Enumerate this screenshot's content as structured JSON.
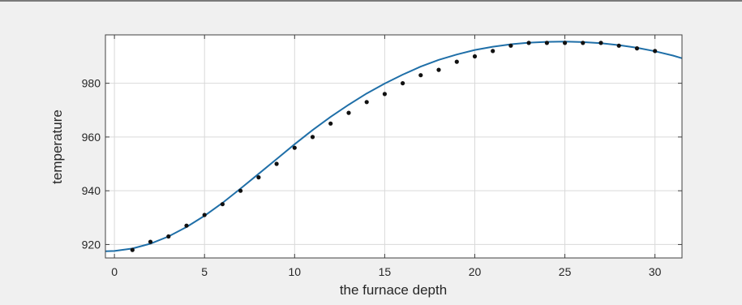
{
  "chart_data": {
    "type": "line",
    "title": "",
    "xlabel": "the furnace depth",
    "ylabel": "temperature",
    "xlim": [
      -0.5,
      31.5
    ],
    "ylim": [
      915,
      998
    ],
    "xticks": [
      0,
      5,
      10,
      15,
      20,
      25,
      30
    ],
    "yticks": [
      920,
      940,
      960,
      980
    ],
    "grid": true,
    "legend": "none",
    "colors": {
      "fit_line": "#1f6fa8",
      "markers": "#111111",
      "grid": "#d9d9d9",
      "axes_bg": "#ffffff",
      "figure_bg": "#f0f0f0"
    },
    "series": [
      {
        "kind": "markers",
        "x": [
          1,
          2,
          3,
          4,
          5,
          6,
          7,
          8,
          9,
          10,
          11,
          12,
          13,
          14,
          15,
          16,
          17,
          18,
          19,
          20,
          21,
          22,
          23,
          24,
          25,
          26,
          27,
          28,
          29,
          30
        ],
        "values": [
          918,
          921,
          923,
          927,
          931,
          935,
          940,
          945,
          950,
          956,
          960,
          965,
          969,
          973,
          976,
          980,
          983,
          985,
          988,
          990,
          992,
          994,
          995,
          995,
          995,
          995,
          995,
          994,
          993,
          992
        ]
      },
      {
        "kind": "line",
        "x": [
          -0.5,
          0,
          1,
          2,
          3,
          4,
          5,
          6,
          7,
          8,
          9,
          10,
          11,
          12,
          13,
          14,
          15,
          16,
          17,
          18,
          19,
          20,
          21,
          22,
          23,
          24,
          25,
          26,
          27,
          28,
          29,
          30,
          31,
          31.5
        ],
        "values": [
          917.5,
          917.6,
          918.5,
          920.3,
          923.0,
          926.5,
          930.7,
          935.5,
          940.8,
          946.3,
          951.8,
          957.3,
          962.6,
          967.5,
          972.0,
          976.2,
          979.9,
          983.2,
          986.2,
          988.7,
          990.7,
          992.4,
          993.6,
          994.5,
          995.1,
          995.4,
          995.5,
          995.3,
          994.9,
          994.2,
          993.2,
          991.9,
          990.3,
          989.3
        ]
      }
    ]
  }
}
